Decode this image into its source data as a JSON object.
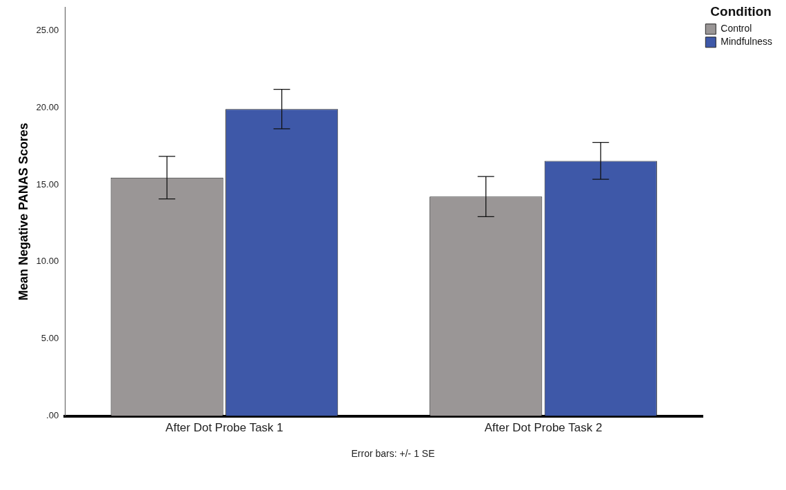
{
  "chart_data": {
    "type": "bar",
    "ylabel": "Mean Negative PANAS Scores",
    "legend_title": "Condition",
    "legend": "top right",
    "grid": false,
    "categories": [
      "After Dot Probe Task 1",
      "After Dot Probe Task 2"
    ],
    "series": [
      {
        "name": "Control",
        "color": "#9a9696",
        "values": [
          15.46,
          14.23
        ],
        "errors": [
          1.38,
          1.3
        ]
      },
      {
        "name": "Mindfulness",
        "color": "#3e58a8",
        "values": [
          19.91,
          16.55
        ],
        "errors": [
          1.28,
          1.2
        ]
      }
    ],
    "ylim": [
      0,
      26.5
    ],
    "yticks": [
      {
        "value": 0,
        "label": ".00"
      },
      {
        "value": 5,
        "label": "5.00"
      },
      {
        "value": 10,
        "label": "10.00"
      },
      {
        "value": 15,
        "label": "15.00"
      },
      {
        "value": 20,
        "label": "20.00"
      },
      {
        "value": 25,
        "label": "25.00"
      }
    ],
    "annotations": [
      "Error bars: +/- 1 SE"
    ]
  }
}
